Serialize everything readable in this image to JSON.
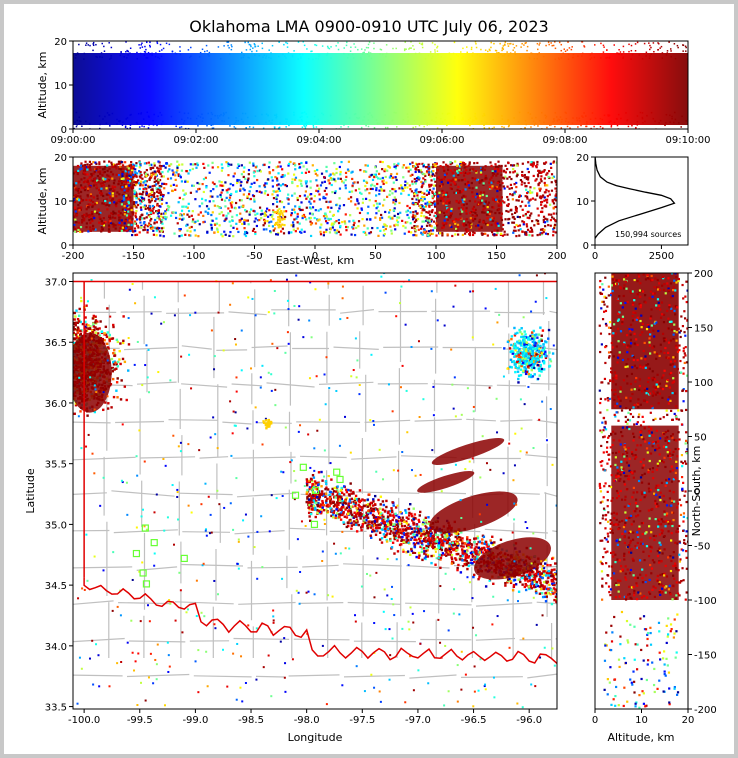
{
  "title": "Oklahoma LMA 0900-0910 UTC July 06, 2023",
  "colors": {
    "border": "#e00000",
    "county": "#c0c0c0",
    "station": "#66ff33"
  },
  "chart_data": [
    {
      "type": "scatter",
      "panel": "altitude-time",
      "xlabel": "",
      "ylabel": "Altitude, km",
      "xticks": [
        "09:00:00",
        "09:02:00",
        "09:04:00",
        "09:06:00",
        "09:08:00",
        "09:10:00"
      ],
      "yticks": [
        0,
        10,
        20
      ],
      "xlim": [
        "09:00:00",
        "09:10:00"
      ],
      "ylim": [
        0,
        20
      ],
      "colormap": "jet (by time)"
    },
    {
      "type": "scatter",
      "panel": "east-west-altitude",
      "xlabel": "East-West, km",
      "ylabel": "Altitude, km",
      "xticks": [
        -200,
        -150,
        -100,
        -50,
        0,
        50,
        100,
        150,
        200
      ],
      "yticks": [
        0,
        10,
        20
      ],
      "xlim": [
        -200,
        200
      ],
      "ylim": [
        0,
        20
      ]
    },
    {
      "type": "line",
      "panel": "altitude-histogram",
      "annotation": "150,994 sources",
      "xticks": [
        0,
        2500
      ],
      "yticks": [
        0,
        10,
        20
      ],
      "xlim": [
        0,
        3500
      ],
      "ylim": [
        0,
        20
      ],
      "x": [
        0,
        30,
        120,
        400,
        900,
        1700,
        2500,
        2990,
        2850,
        2500,
        1900,
        1300,
        800,
        450,
        200,
        80,
        30,
        5
      ],
      "y": [
        1.5,
        1.8,
        2.5,
        4,
        5.5,
        7,
        8.5,
        9.5,
        10.5,
        11.3,
        12,
        12.8,
        13.5,
        14.3,
        15.5,
        17,
        18.5,
        20
      ]
    },
    {
      "type": "scatter",
      "panel": "plan-view",
      "xlabel": "Longitude",
      "ylabel": "Latitude",
      "xticks": [
        -100.0,
        -99.5,
        -99.0,
        -98.5,
        -98.0,
        -97.5,
        -97.0,
        -96.5,
        -96.0
      ],
      "yticks": [
        33.5,
        34.0,
        34.5,
        35.0,
        35.5,
        36.0,
        36.5,
        37.0
      ],
      "xlim": [
        -100.1,
        -95.75
      ],
      "ylim": [
        33.48,
        37.07
      ],
      "stations": [
        [
          -98.03,
          35.47
        ],
        [
          -98.1,
          35.24
        ],
        [
          -97.93,
          35.0
        ],
        [
          -99.45,
          34.97
        ],
        [
          -99.37,
          34.85
        ],
        [
          -99.53,
          34.76
        ],
        [
          -99.1,
          34.72
        ],
        [
          -99.47,
          34.6
        ],
        [
          -99.44,
          34.51
        ],
        [
          -97.73,
          35.43
        ],
        [
          -97.7,
          35.37
        ],
        [
          -97.92,
          35.28
        ]
      ]
    },
    {
      "type": "scatter",
      "panel": "altitude-north-south",
      "xlabel": "Altitude, km",
      "ylabel": "North-South, km",
      "xticks": [
        0,
        10,
        20
      ],
      "yticks": [
        -200,
        -150,
        -100,
        -50,
        0,
        50,
        100,
        150,
        200
      ],
      "xlim": [
        0,
        20
      ],
      "ylim": [
        -200,
        200
      ]
    }
  ]
}
